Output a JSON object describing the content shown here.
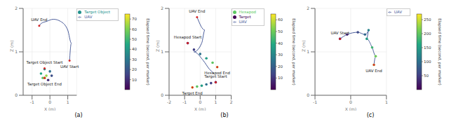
{
  "chart_data": [
    {
      "type": "line",
      "caption": "(a)",
      "x_label": "X (m)",
      "y_label": "Z (m)",
      "legend": "upper right",
      "grid": true,
      "xlim": [
        -1.5,
        1.5
      ],
      "xticks": [
        -1,
        0,
        1
      ],
      "ylim": [
        0,
        2
      ],
      "yticks": [
        0,
        1,
        2
      ],
      "colorbar": {
        "label": "Elapsed time (second, per marker)",
        "range": [
          0,
          75
        ],
        "ticks": [
          10,
          20,
          30,
          40,
          50,
          60,
          70
        ]
      },
      "series": [
        {
          "name": "UAV",
          "type": "line",
          "color": "#4b5d9b",
          "x": [
            1.1,
            1.2,
            1.0,
            0.6,
            0.2,
            -0.2,
            -0.5,
            -0.6
          ],
          "y": [
            0.8,
            1.2,
            1.5,
            1.7,
            1.75,
            1.7,
            1.65,
            1.6
          ]
        },
        {
          "name": "Target Object",
          "type": "scatter",
          "color": "#21918c",
          "x": [
            -0.3,
            -0.1,
            0.1,
            0.0,
            -0.3,
            -0.5,
            -0.4,
            -0.2,
            -0.3
          ],
          "y": [
            0.4,
            0.35,
            0.45,
            0.55,
            0.6,
            0.5,
            0.4,
            0.45,
            0.4
          ],
          "t": [
            0,
            9,
            18,
            27,
            36,
            45,
            54,
            63,
            72
          ]
        }
      ],
      "annotations": [
        {
          "text": "UAV End",
          "x": -0.6,
          "y": 1.6
        },
        {
          "text": "UAV Start",
          "x": 1.1,
          "y": 0.8
        },
        {
          "text": "Target Object Start",
          "x": -0.3,
          "y": 0.62
        },
        {
          "text": "Target Object End",
          "x": -0.3,
          "y": 0.4
        }
      ]
    },
    {
      "type": "line",
      "caption": "(b)",
      "x_label": "X (m)",
      "y_label": "Z (m)",
      "legend": "upper right",
      "grid": true,
      "xlim": [
        -2,
        2
      ],
      "xticks": [
        -2,
        -1,
        0,
        1,
        2
      ],
      "ylim": [
        0,
        2
      ],
      "yticks": [
        0,
        1,
        2
      ],
      "colorbar": {
        "label": "Elapsed time (second, per marker)",
        "range": [
          0,
          65
        ],
        "ticks": [
          10,
          20,
          30,
          40,
          50,
          60
        ]
      },
      "series": [
        {
          "name": "UAV",
          "type": "line",
          "color": "#4b5d9b",
          "x": [
            -0.2,
            0.3,
            0.1,
            -0.4,
            0.2,
            0.6,
            0.9
          ],
          "y": [
            1.8,
            1.5,
            1.2,
            1.0,
            0.8,
            0.6,
            0.5
          ]
        },
        {
          "name": "Target",
          "type": "scatter",
          "color": "#440154",
          "x": [
            1.0,
            0.7,
            0.4,
            0.1,
            -0.2,
            -0.5
          ],
          "y": [
            0.3,
            0.28,
            0.25,
            0.22,
            0.2,
            0.18
          ],
          "t": [
            0,
            12,
            24,
            36,
            48,
            60
          ]
        },
        {
          "name": "Hexapod",
          "type": "scatter",
          "color": "#5ec962",
          "x": [
            -0.8,
            -0.4,
            0.0,
            0.4,
            0.8,
            1.1
          ],
          "y": [
            1.2,
            1.05,
            0.95,
            0.85,
            0.75,
            0.65
          ],
          "t": [
            0,
            12,
            24,
            36,
            48,
            60
          ]
        }
      ],
      "annotations": [
        {
          "text": "UAV End",
          "x": -0.2,
          "y": 1.8
        },
        {
          "text": "Hexapod End",
          "x": 1.1,
          "y": 0.65
        },
        {
          "text": "Hexapod Start",
          "x": -0.8,
          "y": 1.2
        },
        {
          "text": "Target End",
          "x": -0.5,
          "y": 0.18
        },
        {
          "text": "Target Start",
          "x": 1.0,
          "y": 0.3
        }
      ]
    },
    {
      "type": "line",
      "caption": "(c)",
      "x_label": "X (m)",
      "y_label": "Z (m)",
      "legend": "upper right",
      "grid": true,
      "xlim": [
        -1,
        1
      ],
      "xticks": [
        -1,
        0,
        1
      ],
      "ylim": [
        0,
        2
      ],
      "yticks": [
        0,
        1,
        2
      ],
      "colorbar": {
        "label": "Elapsed time (second, per marker)",
        "range": [
          0,
          270
        ],
        "ticks": [
          50,
          100,
          150,
          200,
          250
        ]
      },
      "series": [
        {
          "name": "UAV",
          "type": "line",
          "color": "#4b5d9b",
          "x": [
            -0.3,
            -0.1,
            0.2,
            0.4,
            0.5,
            0.45,
            0.6,
            0.7,
            0.65
          ],
          "y": [
            1.3,
            1.4,
            1.45,
            1.4,
            1.5,
            1.3,
            1.1,
            0.9,
            0.7
          ],
          "t": [
            0,
            30,
            60,
            90,
            120,
            150,
            180,
            210,
            240
          ]
        }
      ],
      "annotations": [
        {
          "text": "UAV Start",
          "x": -0.3,
          "y": 1.3
        },
        {
          "text": "UAV End",
          "x": 0.65,
          "y": 0.7
        }
      ]
    }
  ]
}
